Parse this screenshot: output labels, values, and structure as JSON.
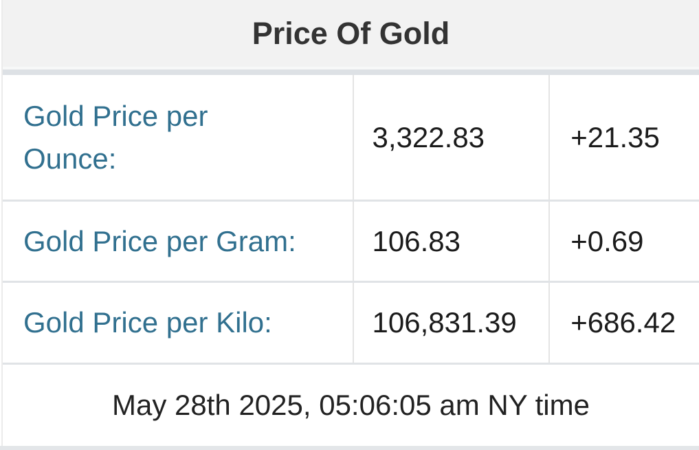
{
  "widget": {
    "title": "Price Of Gold",
    "rows": [
      {
        "label": "Gold Price per\nOunce:",
        "price": "3,322.83",
        "change": "+21.35"
      },
      {
        "label": "Gold Price per Gram:",
        "price": "106.83",
        "change": "+0.69"
      },
      {
        "label": "Gold Price per Kilo:",
        "price": "106,831.39",
        "change": "+686.42"
      }
    ],
    "timestamp": "May 28th 2025, 05:06:05 am NY time",
    "colors": {
      "header_bg": "#f2f2f2",
      "header_text": "#333333",
      "label_link": "#31708f",
      "value_text": "#1b1b1b",
      "divider": "#e0e3e6",
      "band": "#dde1e5",
      "bottom_strip": "#e3e6e9"
    }
  }
}
